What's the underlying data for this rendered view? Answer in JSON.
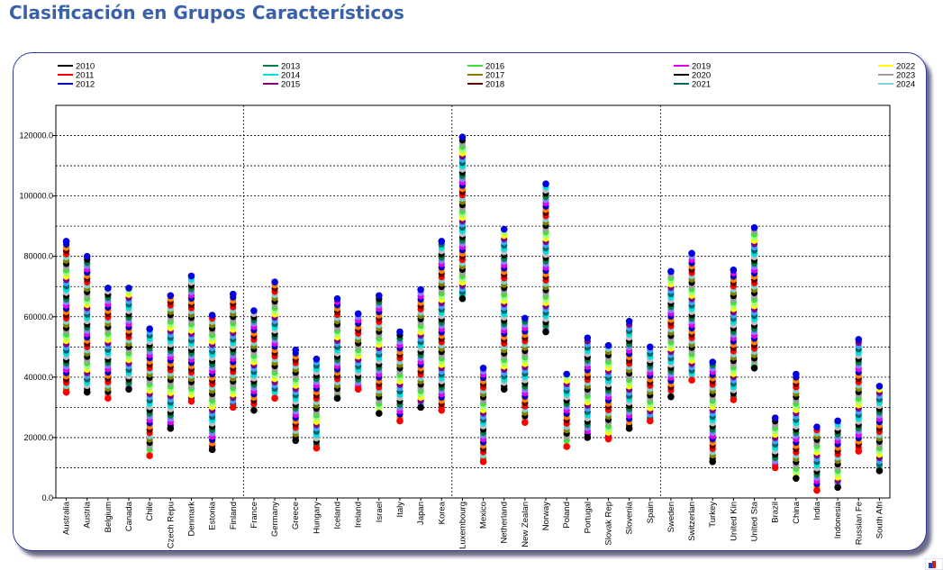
{
  "page_title": "Clasificación en Grupos Característicos",
  "chart_data": {
    "type": "scatter",
    "title": "",
    "xlabel": "",
    "ylabel": "",
    "ylim": [
      0,
      130000
    ],
    "y_ticks": [
      "0.0",
      "20000.0",
      "40000.0",
      "60000.0",
      "80000.0",
      "100000.0",
      "120000.0"
    ],
    "grid": true,
    "legend_position": "top",
    "group_separators_after": [
      "Finland",
      "Korea",
      "Spain"
    ],
    "categories": [
      "Australia",
      "Austria",
      "Belgium",
      "Canada",
      "Chile",
      "Czech Repu",
      "Denmark",
      "Estonia",
      "Finland",
      "France",
      "Germany",
      "Greece",
      "Hungary",
      "Iceland",
      "Ireland",
      "Israel",
      "Italy",
      "Japan",
      "Korea",
      "Luxembourg",
      "Mexico",
      "Netherland",
      "New Zealan",
      "Norway",
      "Poland",
      "Portugal",
      "Slovak Rep",
      "Slovenia",
      "Spain",
      "Sweden",
      "Switzerlan",
      "Turkey",
      "United Kin",
      "United Sta",
      "Brazil",
      "China",
      "India",
      "Indonesia",
      "Russian Fe",
      "South Afri"
    ],
    "range_min": [
      35000,
      35000,
      33000,
      36000,
      14000,
      23000,
      32000,
      16000,
      30000,
      29000,
      33000,
      19000,
      16500,
      33000,
      36000,
      28000,
      25500,
      30000,
      29000,
      66000,
      12000,
      36000,
      25000,
      55000,
      17000,
      20000,
      19500,
      23000,
      25500,
      33500,
      39000,
      12000,
      32500,
      43000,
      10000,
      6500,
      2500,
      3500,
      15500,
      9000
    ],
    "range_max": [
      85000,
      80000,
      69500,
      69500,
      56000,
      67000,
      73500,
      60500,
      67500,
      62000,
      71500,
      49000,
      46000,
      66000,
      61000,
      67000,
      55000,
      69000,
      85000,
      119500,
      43000,
      89000,
      59500,
      104000,
      41000,
      53000,
      50500,
      58500,
      50000,
      75000,
      81000,
      45000,
      75500,
      89500,
      26500,
      41000,
      23500,
      25500,
      52500,
      37000
    ],
    "series": [
      {
        "name": "2010",
        "color": "#000000"
      },
      {
        "name": "2011",
        "color": "#ff0000"
      },
      {
        "name": "2012",
        "color": "#0000c0"
      },
      {
        "name": "2013",
        "color": "#008040"
      },
      {
        "name": "2014",
        "color": "#00e0e0"
      },
      {
        "name": "2015",
        "color": "#800080"
      },
      {
        "name": "2016",
        "color": "#40e040"
      },
      {
        "name": "2017",
        "color": "#808000"
      },
      {
        "name": "2018",
        "color": "#600000"
      },
      {
        "name": "2019",
        "color": "#e000e0"
      },
      {
        "name": "2020",
        "color": "#000000"
      },
      {
        "name": "2021",
        "color": "#006868"
      },
      {
        "name": "2022",
        "color": "#ffff00"
      },
      {
        "name": "2023",
        "color": "#a0a0a0"
      },
      {
        "name": "2024",
        "color": "#80d0d0"
      }
    ]
  }
}
